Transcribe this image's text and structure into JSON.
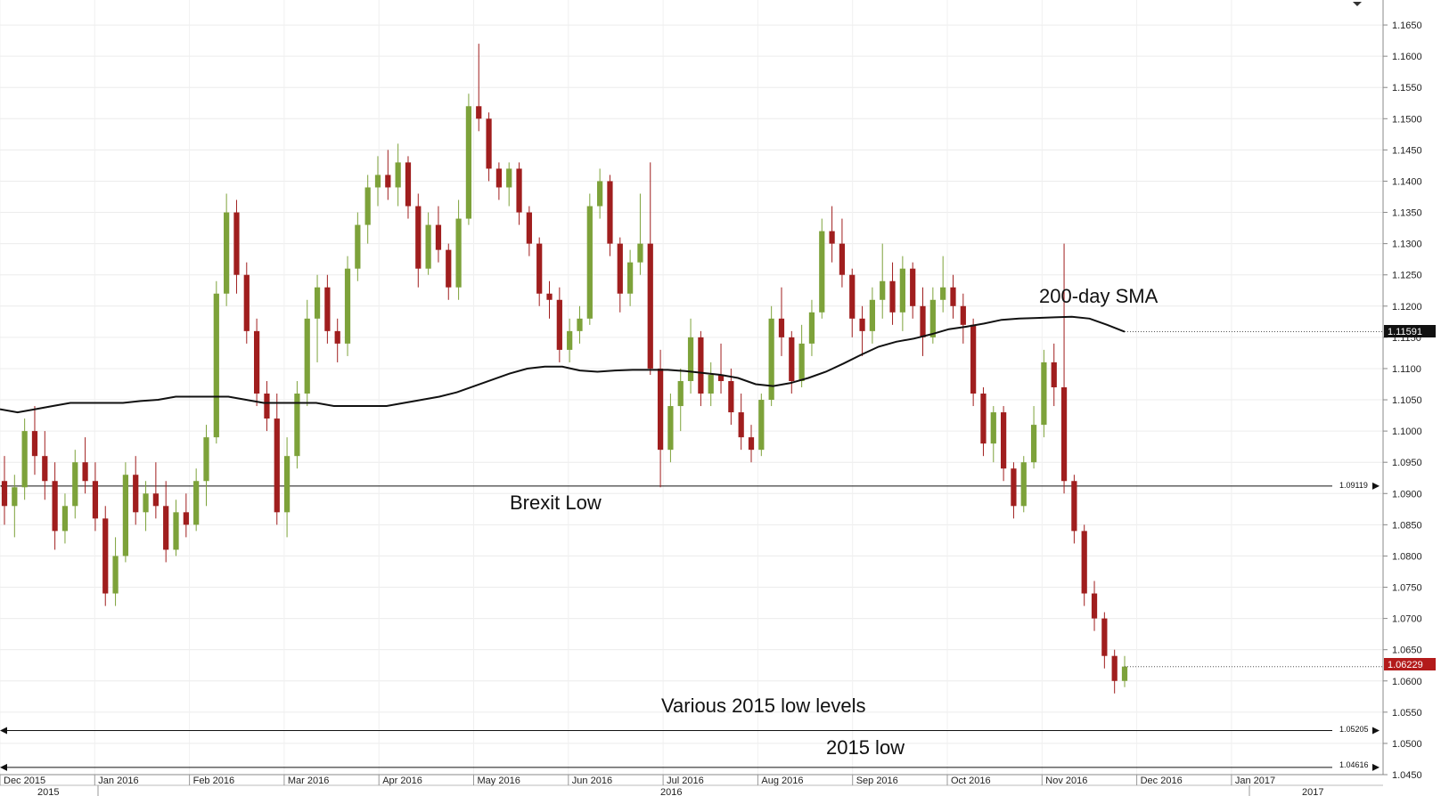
{
  "chart_data": {
    "type": "candlestick",
    "title": "",
    "y_range": [
      1.045,
      1.169
    ],
    "y_ticks": [
      "1.1650",
      "1.1600",
      "1.1550",
      "1.1500",
      "1.1450",
      "1.1400",
      "1.1350",
      "1.1300",
      "1.1250",
      "1.1200",
      "1.1150",
      "1.1100",
      "1.1050",
      "1.1000",
      "1.0950",
      "1.0900",
      "1.0850",
      "1.0800",
      "1.0750",
      "1.0700",
      "1.0650",
      "1.0600",
      "1.0550",
      "1.0500",
      "1.0450"
    ],
    "x_months": [
      "Dec 2015",
      "Jan 2016",
      "Feb 2016",
      "Mar 2016",
      "Apr 2016",
      "May 2016",
      "Jun 2016",
      "Jul 2016",
      "Aug 2016",
      "Sep 2016",
      "Oct 2016",
      "Nov 2016",
      "Dec 2016",
      "Jan 2017"
    ],
    "x_years": [
      "2015",
      "2016",
      "2017"
    ],
    "horizontal_levels": [
      {
        "value": 1.09119,
        "label": "1.09119",
        "annotation": "Brexit Low"
      },
      {
        "value": 1.05205,
        "label": "1.05205",
        "annotation": "Various 2015 low levels"
      },
      {
        "value": 1.04616,
        "label": "1.04616",
        "annotation": "2015 low"
      }
    ],
    "sma": {
      "annotation": "200-day SMA",
      "last_value": "1.11591",
      "values": [
        1.1035,
        1.103,
        1.1035,
        1.104,
        1.1045,
        1.1045,
        1.1045,
        1.1045,
        1.1048,
        1.105,
        1.1055,
        1.1055,
        1.1055,
        1.1055,
        1.105,
        1.1045,
        1.1045,
        1.1045,
        1.1045,
        1.104,
        1.104,
        1.104,
        1.104,
        1.1045,
        1.105,
        1.1055,
        1.1062,
        1.1072,
        1.1082,
        1.1092,
        1.11,
        1.1103,
        1.1103,
        1.1097,
        1.1095,
        1.1097,
        1.1098,
        1.1098,
        1.1098,
        1.1096,
        1.1093,
        1.109,
        1.1085,
        1.1075,
        1.1072,
        1.1077,
        1.1085,
        1.1095,
        1.1108,
        1.1122,
        1.1135,
        1.1143,
        1.1148,
        1.1155,
        1.1163,
        1.1167,
        1.1172,
        1.1178,
        1.118,
        1.1181,
        1.1182,
        1.1183,
        1.118,
        1.117,
        1.1159
      ]
    },
    "last_price": "1.06229",
    "candles": [
      [
        1.092,
        1.096,
        1.085,
        1.088
      ],
      [
        1.088,
        1.093,
        1.083,
        1.091
      ],
      [
        1.091,
        1.102,
        1.089,
        1.1
      ],
      [
        1.1,
        1.104,
        1.093,
        1.096
      ],
      [
        1.096,
        1.1,
        1.089,
        1.092
      ],
      [
        1.092,
        1.095,
        1.081,
        1.084
      ],
      [
        1.084,
        1.09,
        1.082,
        1.088
      ],
      [
        1.088,
        1.097,
        1.086,
        1.095
      ],
      [
        1.095,
        1.099,
        1.09,
        1.092
      ],
      [
        1.092,
        1.095,
        1.084,
        1.086
      ],
      [
        1.086,
        1.088,
        1.072,
        1.074
      ],
      [
        1.074,
        1.083,
        1.072,
        1.08
      ],
      [
        1.08,
        1.095,
        1.079,
        1.093
      ],
      [
        1.093,
        1.096,
        1.085,
        1.087
      ],
      [
        1.087,
        1.092,
        1.084,
        1.09
      ],
      [
        1.09,
        1.095,
        1.086,
        1.088
      ],
      [
        1.088,
        1.092,
        1.079,
        1.081
      ],
      [
        1.081,
        1.089,
        1.08,
        1.087
      ],
      [
        1.087,
        1.09,
        1.083,
        1.085
      ],
      [
        1.085,
        1.094,
        1.084,
        1.092
      ],
      [
        1.092,
        1.101,
        1.088,
        1.099
      ],
      [
        1.099,
        1.124,
        1.098,
        1.122
      ],
      [
        1.122,
        1.138,
        1.12,
        1.135
      ],
      [
        1.135,
        1.137,
        1.122,
        1.125
      ],
      [
        1.125,
        1.127,
        1.114,
        1.116
      ],
      [
        1.116,
        1.118,
        1.104,
        1.106
      ],
      [
        1.106,
        1.108,
        1.1,
        1.102
      ],
      [
        1.102,
        1.106,
        1.085,
        1.087
      ],
      [
        1.087,
        1.099,
        1.083,
        1.096
      ],
      [
        1.096,
        1.108,
        1.094,
        1.106
      ],
      [
        1.106,
        1.121,
        1.104,
        1.118
      ],
      [
        1.118,
        1.125,
        1.111,
        1.123
      ],
      [
        1.123,
        1.125,
        1.114,
        1.116
      ],
      [
        1.116,
        1.118,
        1.111,
        1.114
      ],
      [
        1.114,
        1.128,
        1.112,
        1.126
      ],
      [
        1.126,
        1.135,
        1.124,
        1.133
      ],
      [
        1.133,
        1.141,
        1.13,
        1.139
      ],
      [
        1.139,
        1.144,
        1.136,
        1.141
      ],
      [
        1.141,
        1.145,
        1.137,
        1.139
      ],
      [
        1.139,
        1.146,
        1.136,
        1.143
      ],
      [
        1.143,
        1.144,
        1.134,
        1.136
      ],
      [
        1.136,
        1.138,
        1.123,
        1.126
      ],
      [
        1.126,
        1.135,
        1.125,
        1.133
      ],
      [
        1.133,
        1.136,
        1.127,
        1.129
      ],
      [
        1.129,
        1.13,
        1.121,
        1.123
      ],
      [
        1.123,
        1.137,
        1.121,
        1.134
      ],
      [
        1.134,
        1.154,
        1.133,
        1.152
      ],
      [
        1.152,
        1.162,
        1.148,
        1.15
      ],
      [
        1.15,
        1.151,
        1.14,
        1.142
      ],
      [
        1.142,
        1.143,
        1.137,
        1.139
      ],
      [
        1.139,
        1.143,
        1.136,
        1.142
      ],
      [
        1.142,
        1.143,
        1.133,
        1.135
      ],
      [
        1.135,
        1.136,
        1.128,
        1.13
      ],
      [
        1.13,
        1.131,
        1.12,
        1.122
      ],
      [
        1.122,
        1.124,
        1.118,
        1.121
      ],
      [
        1.121,
        1.123,
        1.111,
        1.113
      ],
      [
        1.113,
        1.118,
        1.111,
        1.116
      ],
      [
        1.116,
        1.12,
        1.114,
        1.118
      ],
      [
        1.118,
        1.138,
        1.117,
        1.136
      ],
      [
        1.136,
        1.142,
        1.134,
        1.14
      ],
      [
        1.14,
        1.141,
        1.128,
        1.13
      ],
      [
        1.13,
        1.131,
        1.119,
        1.122
      ],
      [
        1.122,
        1.129,
        1.12,
        1.127
      ],
      [
        1.127,
        1.138,
        1.125,
        1.13
      ],
      [
        1.13,
        1.143,
        1.109,
        1.11
      ],
      [
        1.11,
        1.113,
        1.091,
        1.097
      ],
      [
        1.097,
        1.106,
        1.095,
        1.104
      ],
      [
        1.104,
        1.11,
        1.1,
        1.108
      ],
      [
        1.108,
        1.118,
        1.106,
        1.115
      ],
      [
        1.115,
        1.116,
        1.104,
        1.106
      ],
      [
        1.106,
        1.111,
        1.104,
        1.109
      ],
      [
        1.109,
        1.114,
        1.106,
        1.108
      ],
      [
        1.108,
        1.11,
        1.101,
        1.103
      ],
      [
        1.103,
        1.106,
        1.097,
        1.099
      ],
      [
        1.099,
        1.101,
        1.095,
        1.097
      ],
      [
        1.097,
        1.106,
        1.096,
        1.105
      ],
      [
        1.105,
        1.12,
        1.104,
        1.118
      ],
      [
        1.118,
        1.123,
        1.112,
        1.115
      ],
      [
        1.115,
        1.116,
        1.106,
        1.108
      ],
      [
        1.108,
        1.117,
        1.107,
        1.114
      ],
      [
        1.114,
        1.121,
        1.112,
        1.119
      ],
      [
        1.119,
        1.134,
        1.118,
        1.132
      ],
      [
        1.132,
        1.136,
        1.127,
        1.13
      ],
      [
        1.13,
        1.134,
        1.123,
        1.125
      ],
      [
        1.125,
        1.126,
        1.115,
        1.118
      ],
      [
        1.118,
        1.12,
        1.112,
        1.116
      ],
      [
        1.116,
        1.123,
        1.114,
        1.121
      ],
      [
        1.121,
        1.13,
        1.118,
        1.124
      ],
      [
        1.124,
        1.127,
        1.117,
        1.119
      ],
      [
        1.119,
        1.128,
        1.116,
        1.126
      ],
      [
        1.126,
        1.127,
        1.118,
        1.12
      ],
      [
        1.12,
        1.123,
        1.112,
        1.115
      ],
      [
        1.115,
        1.123,
        1.114,
        1.121
      ],
      [
        1.121,
        1.128,
        1.119,
        1.123
      ],
      [
        1.123,
        1.125,
        1.118,
        1.12
      ],
      [
        1.12,
        1.122,
        1.114,
        1.117
      ],
      [
        1.117,
        1.118,
        1.104,
        1.106
      ],
      [
        1.106,
        1.107,
        1.096,
        1.098
      ],
      [
        1.098,
        1.104,
        1.095,
        1.103
      ],
      [
        1.103,
        1.104,
        1.092,
        1.094
      ],
      [
        1.094,
        1.095,
        1.086,
        1.088
      ],
      [
        1.088,
        1.096,
        1.087,
        1.095
      ],
      [
        1.095,
        1.104,
        1.094,
        1.101
      ],
      [
        1.101,
        1.113,
        1.099,
        1.111
      ],
      [
        1.111,
        1.114,
        1.104,
        1.107
      ],
      [
        1.107,
        1.13,
        1.09,
        1.092
      ],
      [
        1.092,
        1.093,
        1.082,
        1.084
      ],
      [
        1.084,
        1.085,
        1.072,
        1.074
      ],
      [
        1.074,
        1.076,
        1.068,
        1.07
      ],
      [
        1.07,
        1.071,
        1.062,
        1.064
      ],
      [
        1.064,
        1.065,
        1.058,
        1.06
      ],
      [
        1.06,
        1.064,
        1.059,
        1.0623
      ]
    ]
  }
}
